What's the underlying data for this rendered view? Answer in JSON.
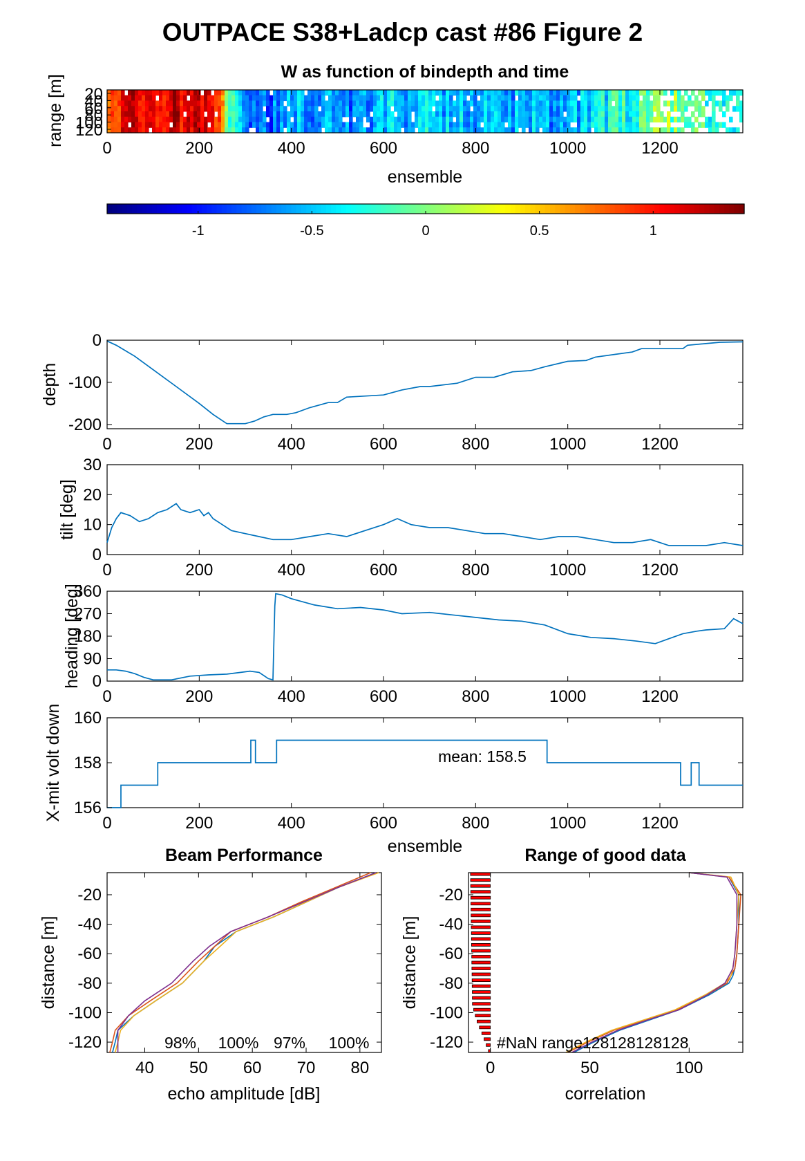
{
  "figure_title": "OUTPACE S38+Ladcp cast #86 Figure 2",
  "chart_data": [
    {
      "type": "heatmap",
      "title": "W as function of bindepth and time",
      "xlabel": "ensemble",
      "ylabel": "range [m]",
      "xlim": [
        0,
        1380
      ],
      "xticks": [
        "0",
        "200",
        "400",
        "600",
        "800",
        "1000",
        "1200"
      ],
      "yticks": [
        "20",
        "40",
        "60",
        "80",
        "100",
        "120"
      ],
      "colorbar": {
        "colormap": "jet",
        "range": [
          -1.4,
          1.4
        ],
        "ticks": [
          "-1",
          "-0.5",
          "0",
          "0.5",
          "1"
        ]
      },
      "column_means_w": [
        {
          "x": 0,
          "w": 0.6
        },
        {
          "x": 40,
          "w": 1.1
        },
        {
          "x": 100,
          "w": 1.15
        },
        {
          "x": 160,
          "w": 1.2
        },
        {
          "x": 200,
          "w": 1.25
        },
        {
          "x": 240,
          "w": 0.9
        },
        {
          "x": 270,
          "w": -0.3
        },
        {
          "x": 300,
          "w": -0.6
        },
        {
          "x": 350,
          "w": -0.75
        },
        {
          "x": 400,
          "w": -0.55
        },
        {
          "x": 450,
          "w": -0.7
        },
        {
          "x": 500,
          "w": -0.6
        },
        {
          "x": 550,
          "w": -0.7
        },
        {
          "x": 600,
          "w": -0.45
        },
        {
          "x": 650,
          "w": -0.65
        },
        {
          "x": 700,
          "w": -0.4
        },
        {
          "x": 750,
          "w": -0.6
        },
        {
          "x": 800,
          "w": -0.5
        },
        {
          "x": 850,
          "w": -0.65
        },
        {
          "x": 900,
          "w": -0.5
        },
        {
          "x": 950,
          "w": -0.55
        },
        {
          "x": 1000,
          "w": -0.6
        },
        {
          "x": 1050,
          "w": -0.5
        },
        {
          "x": 1100,
          "w": -0.35
        },
        {
          "x": 1150,
          "w": -0.2
        },
        {
          "x": 1200,
          "w": 0.05
        },
        {
          "x": 1250,
          "w": -0.1
        },
        {
          "x": 1300,
          "w": -0.2
        },
        {
          "x": 1350,
          "w": -0.3
        },
        {
          "x": 1380,
          "w": -0.3
        }
      ]
    },
    {
      "type": "line",
      "ylabel": "depth",
      "xlim": [
        0,
        1380
      ],
      "ylim": [
        -210,
        0
      ],
      "xticks": [
        "0",
        "200",
        "400",
        "600",
        "800",
        "1000",
        "1200"
      ],
      "yticks": [
        "0",
        "-100",
        "-200"
      ],
      "series": [
        {
          "x": [
            0,
            20,
            60,
            100,
            150,
            200,
            230,
            260,
            300,
            320,
            340,
            360,
            390,
            410,
            440,
            480,
            500,
            520,
            600,
            640,
            680,
            700,
            760,
            800,
            840,
            880,
            920,
            950,
            1000,
            1040,
            1060,
            1140,
            1160,
            1250,
            1260,
            1330,
            1380
          ],
          "y": [
            -2,
            -12,
            -38,
            -70,
            -110,
            -150,
            -176,
            -198,
            -198,
            -192,
            -182,
            -176,
            -176,
            -172,
            -160,
            -148,
            -148,
            -135,
            -130,
            -118,
            -110,
            -110,
            -102,
            -88,
            -88,
            -75,
            -72,
            -63,
            -50,
            -48,
            -40,
            -28,
            -20,
            -20,
            -12,
            -5,
            -4
          ]
        }
      ]
    },
    {
      "type": "line",
      "ylabel": "tilt [deg]",
      "xlim": [
        0,
        1380
      ],
      "ylim": [
        0,
        30
      ],
      "xticks": [
        "0",
        "200",
        "400",
        "600",
        "800",
        "1000",
        "1200"
      ],
      "yticks": [
        "0",
        "10",
        "20",
        "30"
      ],
      "series": [
        {
          "x": [
            0,
            10,
            20,
            30,
            50,
            70,
            90,
            110,
            130,
            150,
            160,
            180,
            200,
            210,
            220,
            230,
            250,
            270,
            300,
            330,
            360,
            400,
            440,
            480,
            520,
            560,
            600,
            630,
            660,
            700,
            740,
            780,
            820,
            860,
            900,
            940,
            980,
            1020,
            1060,
            1100,
            1140,
            1180,
            1220,
            1260,
            1300,
            1340,
            1380
          ],
          "y": [
            4,
            9,
            12,
            14,
            13,
            11,
            12,
            14,
            15,
            17,
            15,
            14,
            15,
            13,
            14,
            12,
            10,
            8,
            7,
            6,
            5,
            5,
            6,
            7,
            6,
            8,
            10,
            12,
            10,
            9,
            9,
            8,
            7,
            7,
            6,
            5,
            6,
            6,
            5,
            4,
            4,
            5,
            3,
            3,
            3,
            4,
            3
          ]
        }
      ]
    },
    {
      "type": "line",
      "ylabel": "heading [deg]",
      "xlim": [
        0,
        1380
      ],
      "ylim": [
        0,
        360
      ],
      "xticks": [
        "0",
        "200",
        "400",
        "600",
        "800",
        "1000",
        "1200"
      ],
      "yticks": [
        "0",
        "90",
        "180",
        "270",
        "360"
      ],
      "series": [
        {
          "x": [
            0,
            20,
            40,
            60,
            80,
            100,
            140,
            180,
            220,
            260,
            290,
            310,
            330,
            350,
            360,
            362,
            364,
            366,
            380,
            400,
            450,
            500,
            550,
            600,
            640,
            700,
            750,
            800,
            850,
            900,
            950,
            1000,
            1050,
            1100,
            1150,
            1190,
            1220,
            1250,
            1280,
            1300,
            1340,
            1360,
            1380
          ],
          "y": [
            45,
            45,
            40,
            30,
            15,
            5,
            5,
            20,
            25,
            28,
            35,
            40,
            35,
            10,
            5,
            150,
            300,
            350,
            345,
            330,
            305,
            290,
            295,
            285,
            270,
            275,
            265,
            255,
            245,
            240,
            225,
            190,
            175,
            170,
            160,
            150,
            170,
            190,
            200,
            205,
            210,
            250,
            230
          ]
        }
      ]
    },
    {
      "type": "line",
      "xlabel": "ensemble",
      "ylabel": "X-mit volt down",
      "xlim": [
        0,
        1380
      ],
      "ylim": [
        156,
        160
      ],
      "xticks": [
        "0",
        "200",
        "400",
        "600",
        "800",
        "1000",
        "1200"
      ],
      "yticks": [
        "156",
        "158",
        "160"
      ],
      "annotation": "mean: 158.5",
      "series": [
        {
          "x": [
            0,
            30,
            30,
            110,
            110,
            312,
            312,
            322,
            322,
            368,
            368,
            955,
            955,
            1245,
            1245,
            1268,
            1268,
            1285,
            1285,
            1380
          ],
          "y": [
            156,
            156,
            157,
            157,
            158,
            158,
            159,
            159,
            158,
            158,
            159,
            159,
            158,
            158,
            157,
            157,
            158,
            158,
            157,
            157
          ]
        }
      ]
    },
    {
      "type": "line",
      "title": "Beam Performance",
      "xlabel": "echo amplitude [dB]",
      "ylabel": "distance [m]",
      "xlim": [
        33,
        84
      ],
      "ylim": [
        -127,
        -5
      ],
      "xticks": [
        "40",
        "50",
        "60",
        "70",
        "80"
      ],
      "yticks": [
        "-20",
        "-40",
        "-60",
        "-80",
        "-100",
        "-120"
      ],
      "annotations": [
        "98%",
        "100%",
        "97%",
        "100%"
      ],
      "series": [
        {
          "x": [
            83,
            76,
            70,
            64,
            57,
            53,
            51,
            47,
            42,
            38,
            35,
            34.5,
            34
          ],
          "y": [
            -5,
            -15,
            -25,
            -35,
            -45,
            -55,
            -65,
            -80,
            -92,
            -102,
            -112,
            -120,
            -127
          ]
        },
        {
          "x": [
            82,
            75.5,
            69,
            63,
            56,
            53,
            50,
            46,
            41,
            37,
            34.5,
            34,
            33.5
          ],
          "y": [
            -5,
            -15,
            -25,
            -35,
            -45,
            -55,
            -65,
            -80,
            -92,
            -102,
            -112,
            -120,
            -127
          ]
        },
        {
          "x": [
            83.5,
            76,
            70,
            64,
            57,
            54,
            51,
            47,
            42,
            38,
            35.5,
            35,
            34.5
          ],
          "y": [
            -5,
            -15,
            -25,
            -35,
            -45,
            -55,
            -65,
            -80,
            -92,
            -102,
            -112,
            -120,
            -127
          ]
        },
        {
          "x": [
            83,
            76,
            69.5,
            63,
            56,
            52,
            49,
            45,
            40,
            37,
            35,
            35,
            35
          ],
          "y": [
            -5,
            -15,
            -25,
            -35,
            -45,
            -55,
            -65,
            -80,
            -92,
            -102,
            -112,
            -120,
            -127
          ]
        }
      ]
    },
    {
      "type": "line",
      "title": "Range of good data",
      "xlabel": "correlation",
      "ylabel": "distance [m]",
      "xlim": [
        -11,
        127
      ],
      "ylim": [
        -127,
        -5
      ],
      "xticks": [
        "0",
        "50",
        "100"
      ],
      "yticks": [
        "-20",
        "-40",
        "-60",
        "-80",
        "-100",
        "-120"
      ],
      "annotation": "#NaN range128128128128",
      "series": [
        {
          "x": [
            100,
            120,
            125,
            125,
            124,
            123,
            122,
            120,
            110,
            95,
            80,
            65,
            52,
            42
          ],
          "y": [
            -5,
            -8,
            -20,
            -40,
            -60,
            -70,
            -75,
            -80,
            -88,
            -98,
            -105,
            -112,
            -120,
            -127
          ]
        },
        {
          "x": [
            100,
            120,
            126,
            125,
            124,
            123,
            121,
            119,
            109,
            94,
            78,
            62,
            49,
            39
          ],
          "y": [
            -5,
            -8,
            -20,
            -40,
            -60,
            -70,
            -75,
            -80,
            -88,
            -98,
            -105,
            -112,
            -120,
            -127
          ]
        },
        {
          "x": [
            100,
            121,
            125,
            124,
            123,
            122,
            121,
            118,
            108,
            93,
            77,
            61,
            48,
            38
          ],
          "y": [
            -5,
            -8,
            -20,
            -40,
            -60,
            -70,
            -75,
            -80,
            -88,
            -98,
            -105,
            -112,
            -120,
            -127
          ]
        },
        {
          "x": [
            100,
            119,
            124,
            124,
            123,
            122,
            120,
            118,
            109,
            95,
            79,
            64,
            51,
            41
          ],
          "y": [
            -5,
            -8,
            -20,
            -40,
            -60,
            -70,
            -75,
            -80,
            -88,
            -98,
            -105,
            -112,
            -120,
            -127
          ]
        }
      ],
      "bars": {
        "y": [
          -5,
          -15,
          -25,
          -35,
          -45,
          -55,
          -65,
          -75,
          -85,
          -95,
          -105,
          -115,
          -125
        ],
        "x": [
          -10,
          -10,
          -10,
          -10,
          -10,
          -10,
          -10,
          -10,
          -10,
          -9,
          -7,
          -4,
          -1
        ]
      }
    }
  ]
}
